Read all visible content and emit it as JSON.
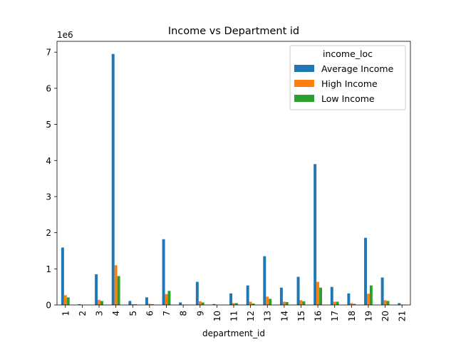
{
  "chart_data": {
    "type": "bar",
    "title": "Income vs Department id",
    "xlabel": "department_id",
    "ylabel": "",
    "y_multiplier_label": "1e6",
    "ylim": [
      0,
      7300000
    ],
    "yticks": [
      0,
      1000000,
      2000000,
      3000000,
      4000000,
      5000000,
      6000000,
      7000000
    ],
    "ytick_labels": [
      "0",
      "1",
      "2",
      "3",
      "4",
      "5",
      "6",
      "7"
    ],
    "categories": [
      "1",
      "2",
      "3",
      "4",
      "5",
      "6",
      "7",
      "8",
      "9",
      "10",
      "11",
      "12",
      "13",
      "14",
      "15",
      "16",
      "17",
      "18",
      "19",
      "20",
      "21"
    ],
    "legend": {
      "title": "income_loc",
      "position": "upper right"
    },
    "series": [
      {
        "name": "Average Income",
        "color": "#1f77b4",
        "values": [
          1590000,
          20000,
          850000,
          6950000,
          110000,
          210000,
          1820000,
          70000,
          640000,
          25000,
          320000,
          540000,
          1350000,
          480000,
          780000,
          3900000,
          500000,
          320000,
          1860000,
          760000,
          50000
        ]
      },
      {
        "name": "High Income",
        "color": "#ff7f0e",
        "values": [
          270000,
          5000,
          140000,
          1100000,
          20000,
          30000,
          300000,
          10000,
          100000,
          5000,
          50000,
          90000,
          230000,
          90000,
          130000,
          640000,
          90000,
          50000,
          310000,
          130000,
          10000
        ]
      },
      {
        "name": "Low Income",
        "color": "#2ca02c",
        "values": [
          210000,
          5000,
          110000,
          800000,
          20000,
          20000,
          390000,
          10000,
          70000,
          5000,
          50000,
          40000,
          170000,
          80000,
          100000,
          480000,
          90000,
          30000,
          540000,
          110000,
          10000
        ]
      }
    ]
  }
}
